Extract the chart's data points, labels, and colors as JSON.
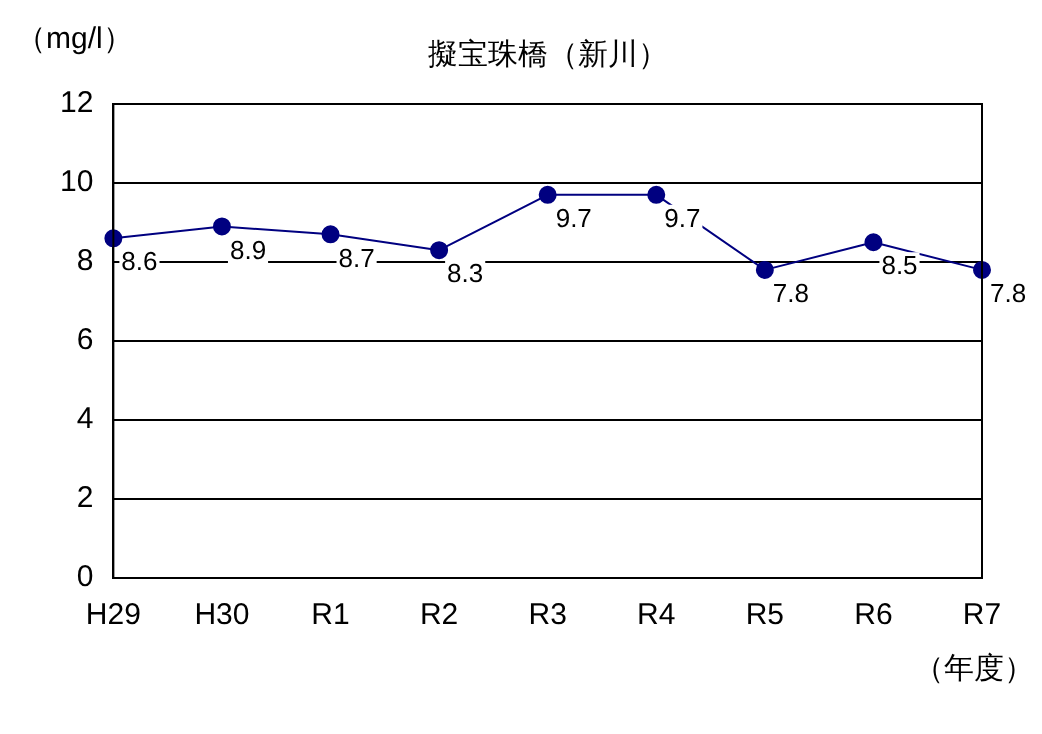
{
  "chart_data": {
    "type": "line",
    "title": "擬宝珠橋（新川）",
    "ylabel": "（mg/l）",
    "xlabel": "（年度）",
    "categories": [
      "H29",
      "H30",
      "R1",
      "R2",
      "R3",
      "R4",
      "R5",
      "R6",
      "R7"
    ],
    "series": [
      {
        "color": "#000080",
        "values": [
          8.6,
          8.9,
          8.7,
          8.3,
          9.7,
          9.7,
          7.8,
          8.5,
          7.8
        ]
      }
    ],
    "ylim": [
      0,
      12
    ],
    "yticks": [
      0,
      2,
      4,
      6,
      8,
      10,
      12
    ],
    "grid": "y",
    "marker": "circle",
    "data_labels": true,
    "legend": false
  }
}
